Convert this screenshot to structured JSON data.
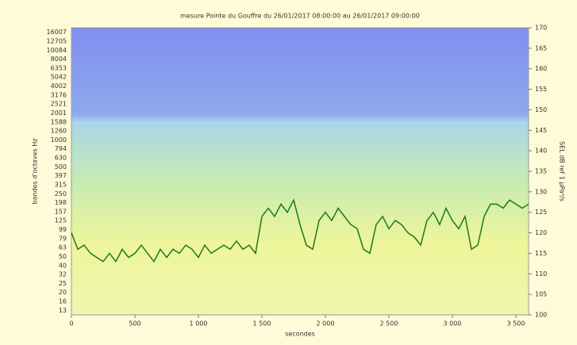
{
  "chart_data": {
    "type": "line",
    "title": "mesure Pointe du Gouffre du 26/01/2017 08:00:00 au 26/01/2017 09:00:00",
    "xlabel": "secondes",
    "ylabel": "bandes d'octaves Hz",
    "y2label": "SEL dB ref 1 µPa²/s",
    "ycategories": [
      "13",
      "16",
      "20",
      "25",
      "32",
      "40",
      "50",
      "63",
      "79",
      "99",
      "125",
      "157",
      "198",
      "250",
      "315",
      "397",
      "500",
      "630",
      "794",
      "1000",
      "1260",
      "1588",
      "2001",
      "2521",
      "3176",
      "4002",
      "5042",
      "6353",
      "8004",
      "10084",
      "12705",
      "16007"
    ],
    "xlim": [
      0,
      3600
    ],
    "xticks": [
      0,
      500,
      {
        "value": 1000,
        "label": "1 000"
      },
      {
        "value": 1500,
        "label": "1 500"
      },
      {
        "value": 2000,
        "label": "2 000"
      },
      {
        "value": 2500,
        "label": "2 500"
      },
      {
        "value": 3000,
        "label": "3 000"
      },
      {
        "value": 3500,
        "label": "3 500"
      }
    ],
    "y2lim": [
      100,
      170
    ],
    "y2ticks": [
      100,
      105,
      110,
      115,
      120,
      125,
      130,
      135,
      140,
      145,
      150,
      155,
      160,
      165,
      170
    ],
    "x": [
      0,
      50,
      100,
      150,
      200,
      250,
      300,
      350,
      400,
      450,
      500,
      550,
      600,
      650,
      700,
      750,
      800,
      850,
      900,
      950,
      1000,
      1050,
      1100,
      1150,
      1200,
      1250,
      1300,
      1350,
      1400,
      1450,
      1500,
      1550,
      1600,
      1650,
      1700,
      1750,
      1800,
      1850,
      1900,
      1950,
      2000,
      2050,
      2100,
      2150,
      2200,
      2250,
      2300,
      2350,
      2400,
      2450,
      2500,
      2550,
      2600,
      2650,
      2700,
      2750,
      2800,
      2850,
      2900,
      2950,
      3000,
      3050,
      3100,
      3150,
      3200,
      3250,
      3300,
      3350,
      3400,
      3450,
      3500,
      3550,
      3600
    ],
    "series": [
      {
        "color": "#1a7a1a",
        "axis": "y2",
        "values": [
          120,
          116,
          117,
          115,
          114,
          113,
          115,
          113,
          116,
          114,
          115,
          117,
          115,
          113,
          116,
          114,
          116,
          115,
          117,
          116,
          114,
          117,
          115,
          116,
          117,
          116,
          118,
          116,
          117,
          115,
          124,
          126,
          124,
          127,
          125,
          128,
          122,
          117,
          116,
          123,
          125,
          123,
          126,
          124,
          122,
          121,
          116,
          115,
          122,
          124,
          121,
          123,
          122,
          120,
          119,
          117,
          123,
          125,
          122,
          126,
          123,
          121,
          124,
          116,
          117,
          124,
          127,
          127,
          126,
          128,
          127,
          126,
          127
        ]
      }
    ]
  }
}
